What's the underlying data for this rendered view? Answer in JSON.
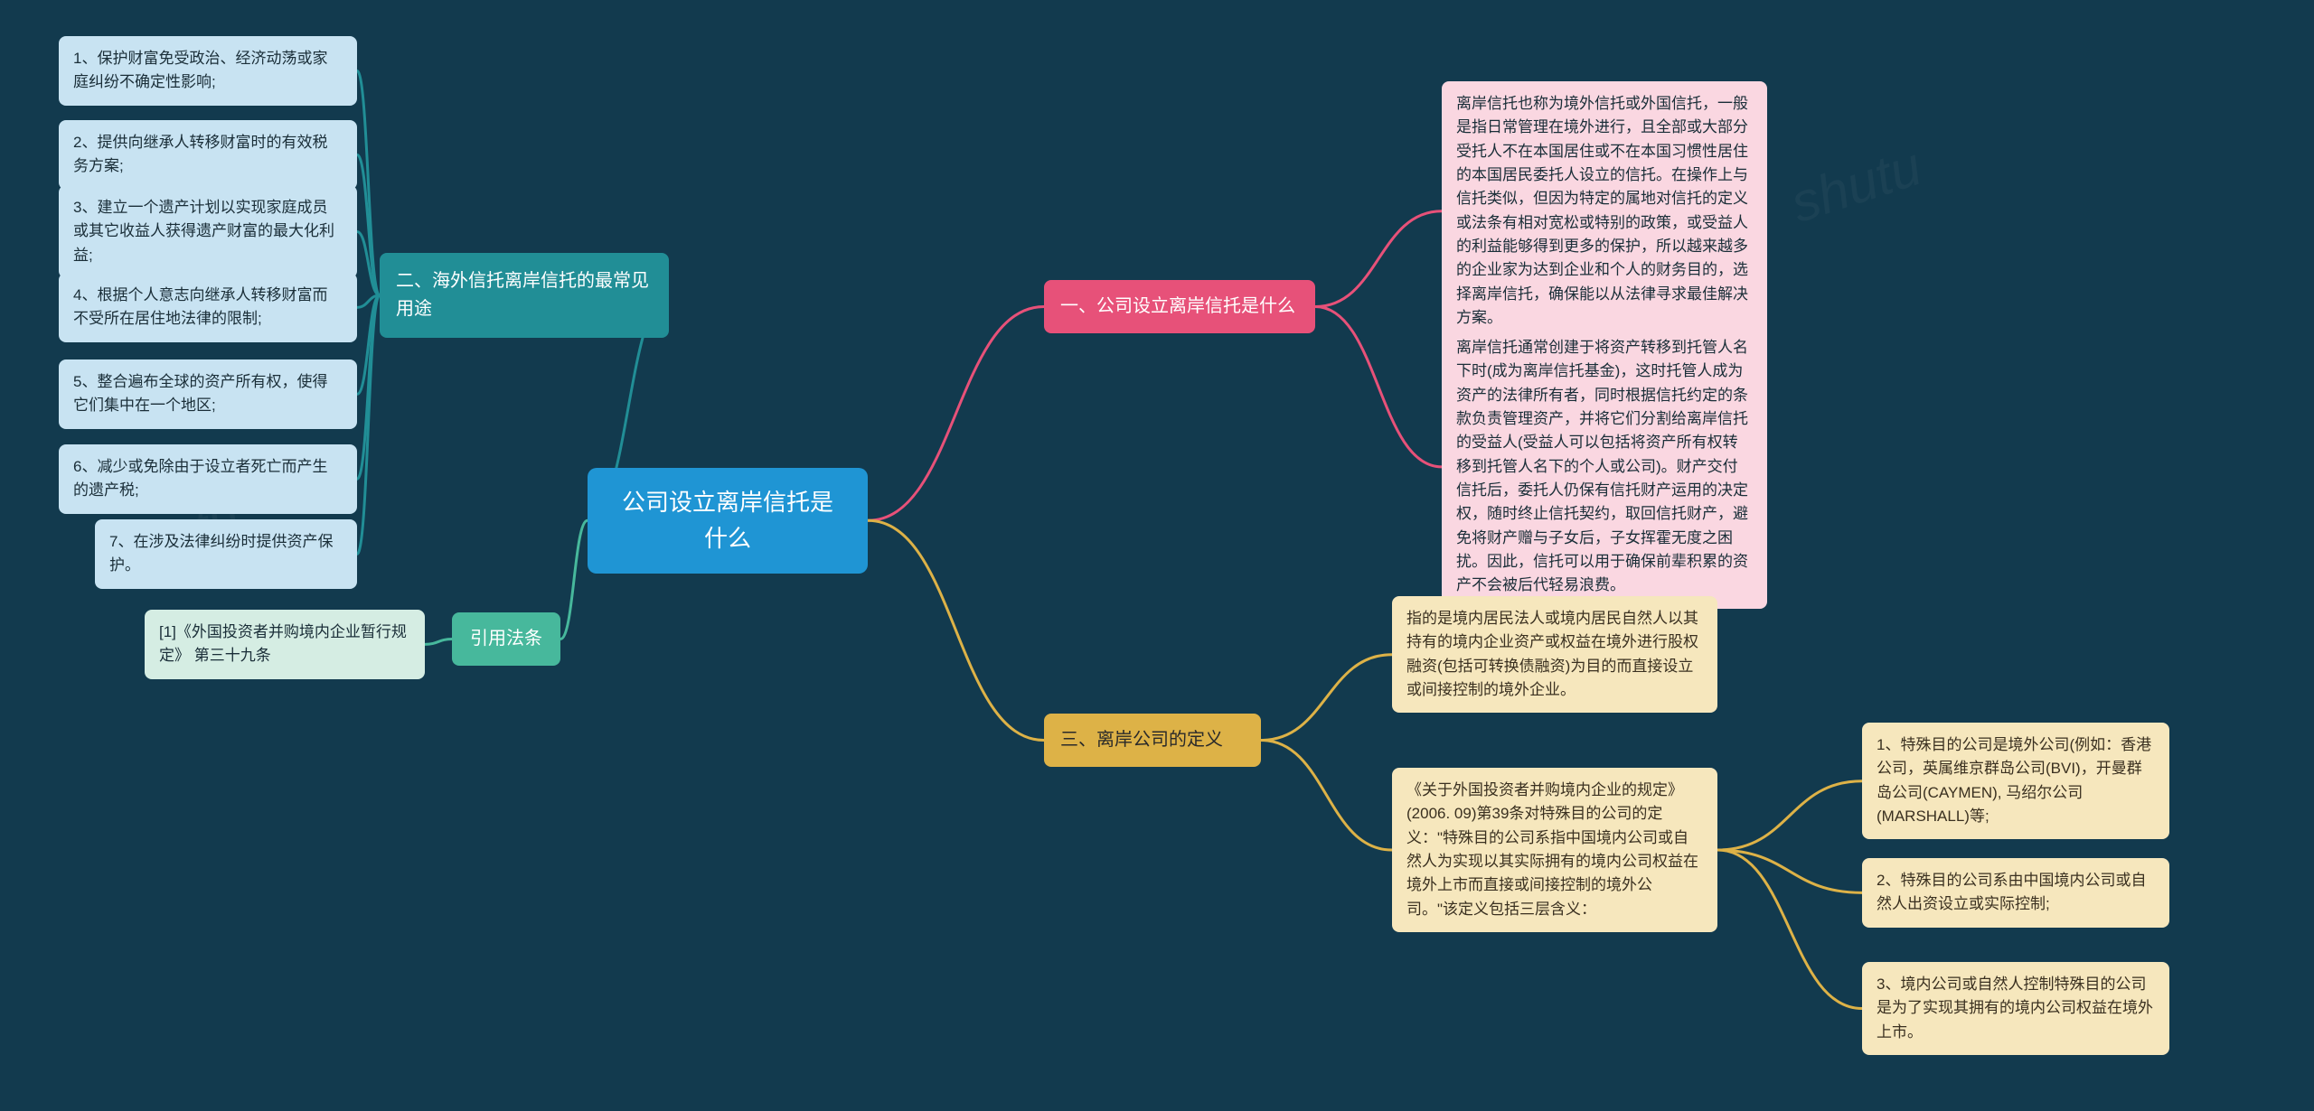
{
  "center": {
    "label": "公司设立离岸信托是什么"
  },
  "branch1": {
    "label": "一、公司设立离岸信托是什么",
    "leaves": [
      "离岸信托也称为境外信托或外国信托，一般是指日常管理在境外进行，且全部或大部分受托人不在本国居住或不在本国习惯性居住的本国居民委托人设立的信托。在操作上与信托类似，但因为特定的属地对信托的定义或法条有相对宽松或特别的政策，或受益人的利益能够得到更多的保护，所以越来越多的企业家为达到企业和个人的财务目的，选择离岸信托，确保能以从法律寻求最佳解决方案。",
      "离岸信托通常创建于将资产转移到托管人名下时(成为离岸信托基金)，这时托管人成为资产的法律所有者，同时根据信托约定的条款负责管理资产，并将它们分割给离岸信托的受益人(受益人可以包括将资产所有权转移到托管人名下的个人或公司)。财产交付信托后，委托人仍保有信托财产运用的决定权，随时终止信托契约，取回信托财产，避免将财产赠与子女后，子女挥霍无度之困扰。因此，信托可以用于确保前辈积累的资产不会被后代轻易浪费。"
    ]
  },
  "branch2": {
    "label": "二、海外信托离岸信托的最常见用途",
    "leaves": [
      "1、保护财富免受政治、经济动荡或家庭纠纷不确定性影响;",
      "2、提供向继承人转移财富时的有效税务方案;",
      "3、建立一个遗产计划以实现家庭成员或其它收益人获得遗产财富的最大化利益;",
      "4、根据个人意志向继承人转移财富而不受所在居住地法律的限制;",
      "5、整合遍布全球的资产所有权，使得它们集中在一个地区;",
      "6、减少或免除由于设立者死亡而产生的遗产税;",
      "7、在涉及法律纠纷时提供资产保护。"
    ]
  },
  "branch3": {
    "label": "三、离岸公司的定义",
    "leaves": [
      "指的是境内居民法人或境内居民自然人以其持有的境内企业资产或权益在境外进行股权融资(包括可转换债融资)为目的而直接设立或间接控制的境外企业。",
      "《关于外国投资者并购境内企业的规定》(2006. 09)第39条对特殊目的公司的定义：\"特殊目的公司系指中国境内公司或自然人为实现以其实际拥有的境内公司权益在境外上市而直接或间接控制的境外公司。\"该定义包括三层含义："
    ],
    "subleaves": [
      "1、特殊目的公司是境外公司(例如：香港公司，英属维京群岛公司(BVI)，开曼群岛公司(CAYMEN), 马绍尔公司(MARSHALL)等;",
      "2、特殊目的公司系由中国境内公司或自然人出资设立或实际控制;",
      "3、境内公司或自然人控制特殊目的公司是为了实现其拥有的境内公司权益在境外上市。"
    ]
  },
  "branch4": {
    "label": "引用法条",
    "leaves": [
      "[1]《外国投资者并购境内企业暂行规定》 第三十九条"
    ]
  },
  "colors": {
    "background": "#123a4e",
    "center_bg": "#1f95d4",
    "pink": "#e75179",
    "teal": "#218e96",
    "green": "#47b89c",
    "gold": "#ddb247",
    "leaf_blue": "#c8e3f2",
    "leaf_pink": "#fad7e1",
    "leaf_gold": "#f6e7bd",
    "leaf_green": "#d5ede3"
  },
  "watermark": "shutu"
}
